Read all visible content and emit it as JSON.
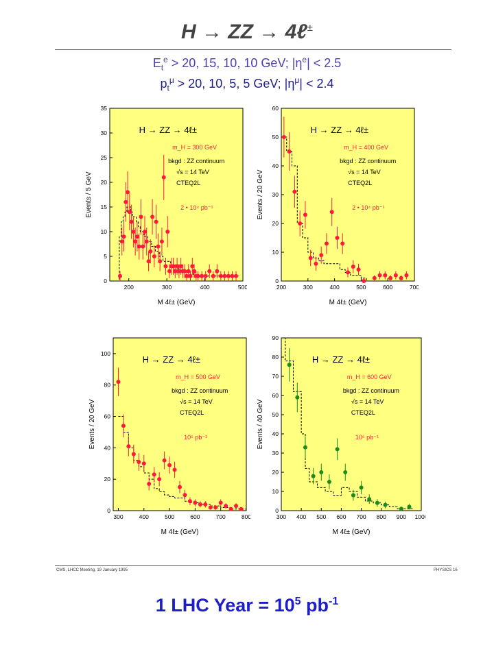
{
  "title": {
    "text": "H → ZZ → 4ℓ",
    "sup": "±"
  },
  "cuts": {
    "line1": {
      "a": "E",
      "a_sub": "t",
      "a_sup": "e",
      "b": " > 20, 15, 10, 10 GeV;    |η",
      "b_sup": "e",
      "c": "| < 2.5"
    },
    "line2": {
      "a": "p",
      "a_sub": "t",
      "a_sup": "μ",
      "b": " > 20, 10, 5, 5 GeV;    |η",
      "b_sup": "μ",
      "c": "| < 2.4"
    }
  },
  "footer": {
    "left": "CMS, LHCC Meeting, 19 January 1995",
    "right": "PHYSICS  16"
  },
  "bottom": {
    "text": "1 LHC Year = 10",
    "sup1": "5",
    "mid": " pb",
    "sup2": "-1"
  },
  "colors": {
    "panel_bg": "#ffff80",
    "red_points": "#ff1a3c",
    "green_points": "#1a8c1a",
    "cuts_line1": "#4a3fb0",
    "cuts_line2": "#1f1f8a",
    "bottom_text": "#1e1ec8"
  },
  "chart_data": [
    {
      "type": "scatter",
      "process": "H → ZZ → 4ℓ±",
      "annotations": [
        "m_H = 300 GeV",
        "bkgd : ZZ continuum",
        "√s = 14 TeV",
        "CTEQ2L",
        "2 • 10⁴ pb⁻¹"
      ],
      "xlabel": "M 4ℓ±   (GeV)",
      "ylabel": "Events / 5 GeV",
      "xlim": [
        150,
        500
      ],
      "ylim": [
        0,
        35
      ],
      "xticks": [
        200,
        300,
        400,
        500
      ],
      "yticks": [
        0,
        5,
        10,
        15,
        20,
        25,
        30,
        35
      ],
      "point_color": "red",
      "points": [
        [
          177,
          1
        ],
        [
          182,
          8
        ],
        [
          187,
          9
        ],
        [
          192,
          16
        ],
        [
          197,
          18
        ],
        [
          202,
          14
        ],
        [
          207,
          12
        ],
        [
          212,
          10
        ],
        [
          217,
          8
        ],
        [
          222,
          9
        ],
        [
          227,
          7
        ],
        [
          232,
          13
        ],
        [
          237,
          7
        ],
        [
          242,
          10
        ],
        [
          247,
          8
        ],
        [
          252,
          4
        ],
        [
          257,
          6
        ],
        [
          262,
          13
        ],
        [
          267,
          5
        ],
        [
          272,
          12
        ],
        [
          277,
          7
        ],
        [
          282,
          4
        ],
        [
          287,
          8
        ],
        [
          292,
          21
        ],
        [
          297,
          3
        ],
        [
          302,
          10
        ],
        [
          307,
          2
        ],
        [
          312,
          3
        ],
        [
          317,
          3
        ],
        [
          322,
          2
        ],
        [
          327,
          3
        ],
        [
          332,
          2
        ],
        [
          337,
          3
        ],
        [
          342,
          2
        ],
        [
          347,
          2
        ],
        [
          352,
          1
        ],
        [
          357,
          2
        ],
        [
          362,
          1
        ],
        [
          367,
          3
        ],
        [
          372,
          2
        ],
        [
          377,
          1
        ],
        [
          382,
          1
        ],
        [
          392,
          1
        ],
        [
          402,
          1
        ],
        [
          412,
          2
        ],
        [
          422,
          1
        ],
        [
          432,
          2
        ],
        [
          442,
          1
        ],
        [
          452,
          1
        ],
        [
          462,
          1
        ],
        [
          472,
          1
        ],
        [
          482,
          1
        ]
      ],
      "background_steps": [
        [
          170,
          0
        ],
        [
          175,
          9
        ],
        [
          180,
          12
        ],
        [
          185,
          13
        ],
        [
          190,
          14
        ],
        [
          195,
          15
        ],
        [
          200,
          15
        ],
        [
          205,
          14
        ],
        [
          210,
          13
        ],
        [
          215,
          13
        ],
        [
          220,
          12
        ],
        [
          225,
          11
        ],
        [
          230,
          10
        ],
        [
          240,
          9
        ],
        [
          250,
          8
        ],
        [
          260,
          7
        ],
        [
          270,
          6
        ],
        [
          280,
          5
        ],
        [
          290,
          4
        ],
        [
          300,
          4
        ],
        [
          310,
          3
        ],
        [
          320,
          3
        ],
        [
          330,
          2
        ],
        [
          340,
          2
        ],
        [
          350,
          2
        ],
        [
          360,
          2
        ],
        [
          370,
          1
        ],
        [
          490,
          1
        ]
      ]
    },
    {
      "type": "scatter",
      "process": "H → ZZ → 4ℓ±",
      "annotations": [
        "m_H = 400 GeV",
        "bkgd : ZZ continuum",
        "√s = 14 TeV",
        "CTEQ2L",
        "2 • 10⁴ pb⁻¹"
      ],
      "xlabel": "M 4ℓ±   (GeV)",
      "ylabel": "Events / 20 GeV",
      "xlim": [
        200,
        700
      ],
      "ylim": [
        0,
        60
      ],
      "xticks": [
        200,
        300,
        400,
        500,
        600,
        700
      ],
      "yticks": [
        0,
        10,
        20,
        30,
        40,
        50,
        60
      ],
      "point_color": "red",
      "points": [
        [
          210,
          50
        ],
        [
          230,
          45
        ],
        [
          250,
          31
        ],
        [
          270,
          20
        ],
        [
          290,
          23
        ],
        [
          310,
          8
        ],
        [
          330,
          6
        ],
        [
          350,
          9
        ],
        [
          370,
          13
        ],
        [
          390,
          24
        ],
        [
          410,
          15
        ],
        [
          430,
          13
        ],
        [
          450,
          3
        ],
        [
          470,
          5
        ],
        [
          490,
          4
        ],
        [
          510,
          0
        ],
        [
          550,
          1
        ],
        [
          570,
          2
        ],
        [
          590,
          2
        ],
        [
          610,
          1
        ],
        [
          630,
          2
        ],
        [
          650,
          1
        ],
        [
          670,
          2
        ]
      ],
      "background_steps": [
        [
          200,
          50
        ],
        [
          220,
          45
        ],
        [
          240,
          40
        ],
        [
          260,
          20
        ],
        [
          280,
          15
        ],
        [
          300,
          10
        ],
        [
          320,
          8
        ],
        [
          340,
          7
        ],
        [
          360,
          6
        ],
        [
          380,
          6
        ],
        [
          400,
          6
        ],
        [
          420,
          4
        ],
        [
          440,
          3
        ],
        [
          460,
          2
        ],
        [
          480,
          2
        ],
        [
          500,
          1
        ],
        [
          520,
          0
        ],
        [
          700,
          0
        ]
      ]
    },
    {
      "type": "scatter",
      "process": "H → ZZ → 4ℓ±",
      "annotations": [
        "m_H = 500 GeV",
        "bkgd : ZZ continuum",
        "√s = 14 TeV",
        "CTEQ2L",
        "10⁵ pb⁻¹"
      ],
      "xlabel": "M 4ℓ±   (GeV)",
      "ylabel": "Events / 20 GeV",
      "xlim": [
        280,
        800
      ],
      "ylim": [
        0,
        110
      ],
      "xticks": [
        300,
        400,
        500,
        600,
        700,
        800
      ],
      "yticks": [
        0,
        20,
        40,
        60,
        80,
        100
      ],
      "point_color": "red",
      "points": [
        [
          300,
          82
        ],
        [
          320,
          54
        ],
        [
          340,
          41
        ],
        [
          360,
          36
        ],
        [
          380,
          31
        ],
        [
          400,
          30
        ],
        [
          420,
          17
        ],
        [
          440,
          23
        ],
        [
          460,
          20
        ],
        [
          480,
          32
        ],
        [
          500,
          29
        ],
        [
          520,
          26
        ],
        [
          540,
          15
        ],
        [
          560,
          10
        ],
        [
          580,
          6
        ],
        [
          600,
          5
        ],
        [
          620,
          4
        ],
        [
          640,
          4
        ],
        [
          660,
          2
        ],
        [
          680,
          2
        ],
        [
          700,
          5
        ],
        [
          720,
          3
        ],
        [
          740,
          1
        ],
        [
          760,
          3
        ],
        [
          780,
          1
        ]
      ],
      "background_steps": [
        [
          300,
          60
        ],
        [
          320,
          50
        ],
        [
          340,
          40
        ],
        [
          360,
          32
        ],
        [
          380,
          28
        ],
        [
          400,
          24
        ],
        [
          420,
          20
        ],
        [
          440,
          14
        ],
        [
          460,
          12
        ],
        [
          480,
          10
        ],
        [
          500,
          9
        ],
        [
          520,
          8
        ],
        [
          540,
          8
        ],
        [
          560,
          6
        ],
        [
          580,
          5
        ],
        [
          600,
          5
        ],
        [
          620,
          4
        ],
        [
          640,
          4
        ],
        [
          660,
          3
        ],
        [
          680,
          3
        ],
        [
          700,
          2
        ],
        [
          720,
          2
        ],
        [
          740,
          1
        ],
        [
          800,
          1
        ]
      ]
    },
    {
      "type": "scatter",
      "process": "H → ZZ → 4ℓ±",
      "annotations": [
        "m_H = 600 GeV",
        "bkgd : ZZ continuum",
        "√s = 14 TeV",
        "CTEQ2L",
        "10⁵ pb⁻¹"
      ],
      "xlabel": "M 4ℓ±   (GeV)",
      "ylabel": "Events / 40 GeV",
      "xlim": [
        300,
        1000
      ],
      "ylim": [
        0,
        90
      ],
      "xticks": [
        300,
        400,
        500,
        600,
        700,
        800,
        900,
        1000
      ],
      "yticks": [
        0,
        10,
        20,
        30,
        40,
        50,
        60,
        70,
        80,
        90
      ],
      "point_color": "green",
      "points": [
        [
          340,
          76
        ],
        [
          380,
          59
        ],
        [
          420,
          33
        ],
        [
          460,
          18
        ],
        [
          500,
          20
        ],
        [
          540,
          15
        ],
        [
          580,
          32
        ],
        [
          620,
          20
        ],
        [
          660,
          8
        ],
        [
          700,
          12
        ],
        [
          740,
          6
        ],
        [
          780,
          4
        ],
        [
          820,
          3
        ],
        [
          900,
          1
        ],
        [
          940,
          2
        ]
      ],
      "background_steps": [
        [
          300,
          90
        ],
        [
          320,
          78
        ],
        [
          360,
          62
        ],
        [
          400,
          40
        ],
        [
          420,
          22
        ],
        [
          440,
          15
        ],
        [
          480,
          12
        ],
        [
          520,
          10
        ],
        [
          560,
          8
        ],
        [
          600,
          12
        ],
        [
          640,
          10
        ],
        [
          680,
          7
        ],
        [
          720,
          5
        ],
        [
          760,
          4
        ],
        [
          800,
          3
        ],
        [
          840,
          2
        ],
        [
          880,
          1
        ],
        [
          960,
          1
        ]
      ]
    }
  ]
}
